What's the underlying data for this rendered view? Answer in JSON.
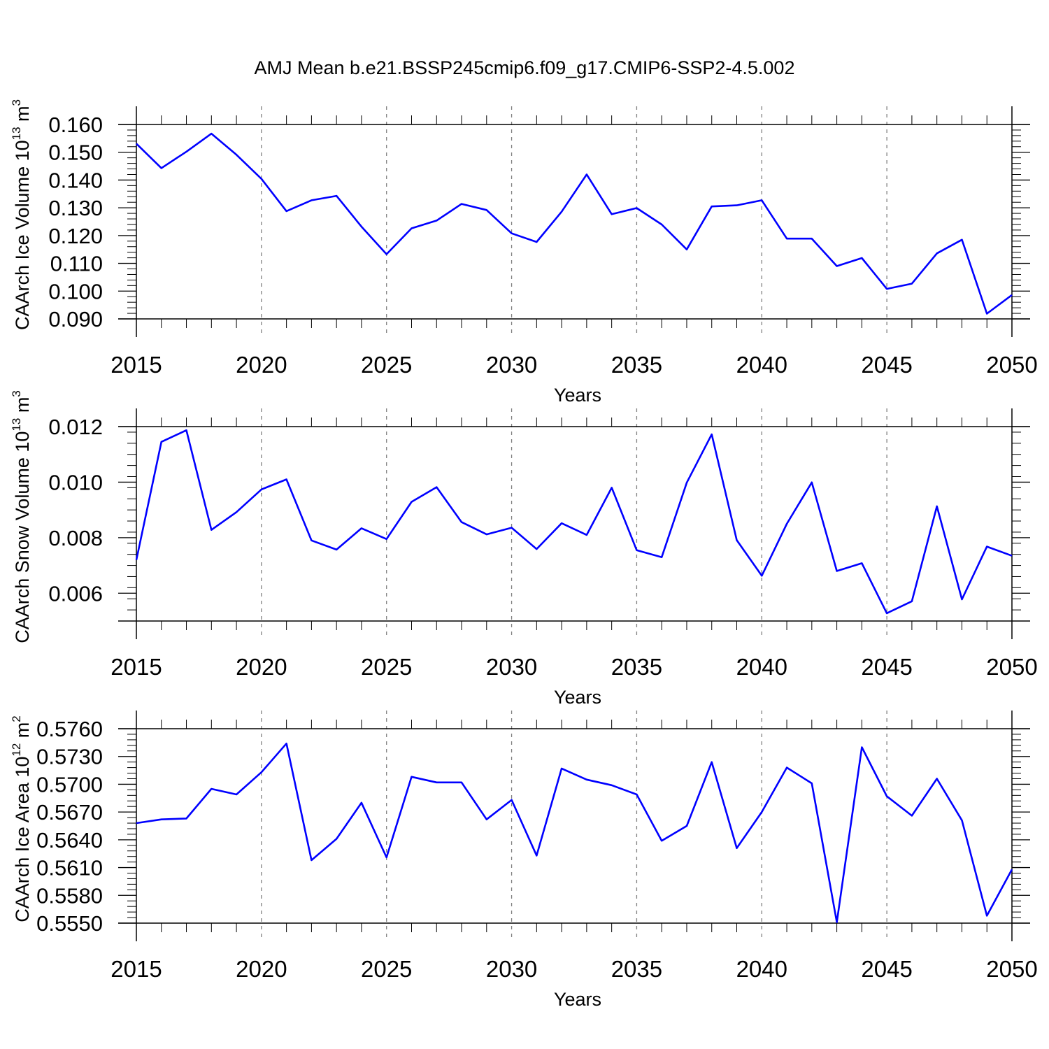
{
  "title": "AMJ Mean b.e21.BSSP245cmip6.f09_g17.CMIP6-SSP2-4.5.002",
  "colors": {
    "line": "#0000ff",
    "axis": "#000000",
    "grid": "#808080"
  },
  "chart_data": [
    {
      "type": "line",
      "title": "AMJ Mean b.e21.BSSP245cmip6.f09_g17.CMIP6-SSP2-4.5.002",
      "ylabel": "CAArch Ice Volume 10",
      "ylabel_sup": "13",
      "ylabel_unit": "m",
      "ylabel_unit_sup": "3",
      "xlabel": "Years",
      "xlim": [
        2015,
        2050
      ],
      "ylim": [
        0.09,
        0.16
      ],
      "xticks": [
        "2015",
        "2020",
        "2025",
        "2030",
        "2035",
        "2040",
        "2045",
        "2050"
      ],
      "yticks": [
        "0.090",
        "0.100",
        "0.110",
        "0.120",
        "0.130",
        "0.140",
        "0.150",
        "0.160"
      ],
      "x": [
        2015,
        2016,
        2017,
        2018,
        2019,
        2020,
        2021,
        2022,
        2023,
        2024,
        2025,
        2026,
        2027,
        2028,
        2029,
        2030,
        2031,
        2032,
        2033,
        2034,
        2035,
        2036,
        2037,
        2038,
        2039,
        2040,
        2041,
        2042,
        2043,
        2044,
        2045,
        2046,
        2047,
        2048,
        2049,
        2050
      ],
      "series": [
        {
          "name": "CAArch Ice Volume",
          "values": [
            0.1531,
            0.1443,
            0.1502,
            0.1567,
            0.1491,
            0.1404,
            0.1288,
            0.1327,
            0.1343,
            0.1232,
            0.1133,
            0.1226,
            0.1254,
            0.1314,
            0.1292,
            0.1208,
            0.1177,
            0.1286,
            0.142,
            0.1277,
            0.1299,
            0.124,
            0.115,
            0.1305,
            0.1309,
            0.1327,
            0.1189,
            0.1189,
            0.109,
            0.1119,
            0.1008,
            0.1027,
            0.1136,
            0.1185,
            0.0919,
            0.0986
          ]
        }
      ]
    },
    {
      "type": "line",
      "ylabel": "CAArch Snow Volume 10",
      "ylabel_sup": "13",
      "ylabel_unit": "m",
      "ylabel_unit_sup": "3",
      "xlabel": "Years",
      "xlim": [
        2015,
        2050
      ],
      "ylim": [
        0.005,
        0.012
      ],
      "xticks": [
        "2015",
        "2020",
        "2025",
        "2030",
        "2035",
        "2040",
        "2045",
        "2050"
      ],
      "yticks": [
        "0.006",
        "0.008",
        "0.010",
        "0.012"
      ],
      "x": [
        2015,
        2016,
        2017,
        2018,
        2019,
        2020,
        2021,
        2022,
        2023,
        2024,
        2025,
        2026,
        2027,
        2028,
        2029,
        2030,
        2031,
        2032,
        2033,
        2034,
        2035,
        2036,
        2037,
        2038,
        2039,
        2040,
        2041,
        2042,
        2043,
        2044,
        2045,
        2046,
        2047,
        2048,
        2049,
        2050
      ],
      "series": [
        {
          "name": "CAArch Snow Volume",
          "values": [
            0.0072,
            0.01145,
            0.01187,
            0.00828,
            0.00892,
            0.00974,
            0.0101,
            0.0079,
            0.00757,
            0.00834,
            0.00795,
            0.00929,
            0.00982,
            0.00856,
            0.00812,
            0.00836,
            0.00759,
            0.00852,
            0.0081,
            0.0098,
            0.00755,
            0.0073,
            0.00998,
            0.01172,
            0.00791,
            0.00663,
            0.0085,
            0.00999,
            0.0068,
            0.00708,
            0.00528,
            0.00571,
            0.00913,
            0.00578,
            0.00768,
            0.00735
          ]
        }
      ]
    },
    {
      "type": "line",
      "ylabel": "CAArch Ice Area 10",
      "ylabel_sup": "12",
      "ylabel_unit": "m",
      "ylabel_unit_sup": "2",
      "xlabel": "Years",
      "xlim": [
        2015,
        2050
      ],
      "ylim": [
        0.555,
        0.576
      ],
      "xticks": [
        "2015",
        "2020",
        "2025",
        "2030",
        "2035",
        "2040",
        "2045",
        "2050"
      ],
      "yticks": [
        "0.5550",
        "0.5580",
        "0.5610",
        "0.5640",
        "0.5670",
        "0.5700",
        "0.5730",
        "0.5760"
      ],
      "x": [
        2015,
        2016,
        2017,
        2018,
        2019,
        2020,
        2021,
        2022,
        2023,
        2024,
        2025,
        2026,
        2027,
        2028,
        2029,
        2030,
        2031,
        2032,
        2033,
        2034,
        2035,
        2036,
        2037,
        2038,
        2039,
        2040,
        2041,
        2042,
        2043,
        2044,
        2045,
        2046,
        2047,
        2048,
        2049,
        2050
      ],
      "series": [
        {
          "name": "CAArch Ice Area",
          "values": [
            0.5658,
            0.5662,
            0.5663,
            0.5695,
            0.5689,
            0.5713,
            0.5744,
            0.5618,
            0.5641,
            0.568,
            0.5621,
            0.5708,
            0.5702,
            0.5702,
            0.5662,
            0.5683,
            0.5623,
            0.5717,
            0.5705,
            0.5699,
            0.5689,
            0.5639,
            0.5655,
            0.5724,
            0.5631,
            0.567,
            0.5718,
            0.5701,
            0.5551,
            0.574,
            0.5687,
            0.5666,
            0.5706,
            0.5661,
            0.5558,
            0.5608
          ]
        }
      ]
    }
  ]
}
